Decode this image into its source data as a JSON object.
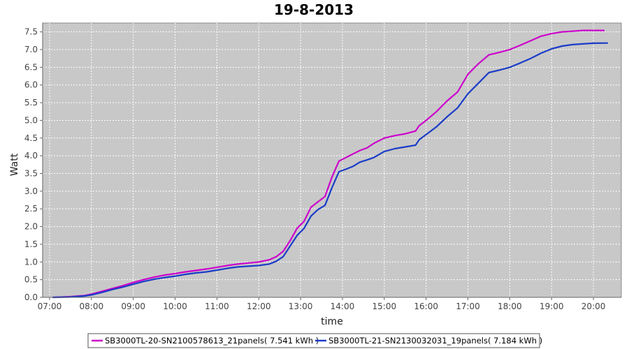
{
  "chart_data": {
    "type": "line",
    "title": "19-8-2013",
    "xlabel": "time",
    "ylabel": "Watt",
    "plot_background": "#c8c8c8",
    "grid": true,
    "legend_position": "bottom",
    "x_ticks": [
      "07:00",
      "08:00",
      "09:00",
      "10:00",
      "11:00",
      "12:00",
      "13:00",
      "14:00",
      "15:00",
      "16:00",
      "17:00",
      "18:00",
      "19:00",
      "20:00"
    ],
    "y_ticks": [
      "0.0",
      "0.5",
      "1.0",
      "1.5",
      "2.0",
      "2.5",
      "3.0",
      "3.5",
      "4.0",
      "4.5",
      "5.0",
      "5.5",
      "6.0",
      "6.5",
      "7.0",
      "7.5"
    ],
    "xlim": [
      "06:50",
      "20:40"
    ],
    "ylim": [
      0,
      7.75
    ],
    "series": [
      {
        "name": "SB3000TL-20-SN2100578613_21panels( 7.541 kWh )",
        "color": "#cc00cc",
        "x": [
          "07:05",
          "07:30",
          "07:50",
          "08:00",
          "08:15",
          "08:30",
          "08:45",
          "09:00",
          "09:15",
          "09:30",
          "09:45",
          "10:00",
          "10:15",
          "10:30",
          "10:45",
          "11:00",
          "11:15",
          "11:30",
          "11:45",
          "12:00",
          "12:15",
          "12:25",
          "12:35",
          "12:45",
          "12:55",
          "13:05",
          "13:15",
          "13:25",
          "13:35",
          "13:45",
          "13:55",
          "14:05",
          "14:15",
          "14:25",
          "14:35",
          "14:45",
          "15:00",
          "15:15",
          "15:30",
          "15:45",
          "15:50",
          "16:00",
          "16:15",
          "16:30",
          "16:45",
          "17:00",
          "17:15",
          "17:30",
          "17:45",
          "18:00",
          "18:15",
          "18:30",
          "18:45",
          "19:00",
          "19:15",
          "19:30",
          "19:45",
          "20:00",
          "20:15"
        ],
        "values": [
          0.0,
          0.02,
          0.05,
          0.09,
          0.17,
          0.25,
          0.33,
          0.42,
          0.5,
          0.57,
          0.63,
          0.67,
          0.72,
          0.76,
          0.8,
          0.85,
          0.9,
          0.94,
          0.97,
          1.0,
          1.06,
          1.15,
          1.3,
          1.6,
          1.95,
          2.15,
          2.55,
          2.7,
          2.85,
          3.4,
          3.85,
          3.95,
          4.05,
          4.15,
          4.22,
          4.35,
          4.5,
          4.57,
          4.62,
          4.7,
          4.85,
          5.0,
          5.25,
          5.55,
          5.8,
          6.3,
          6.6,
          6.85,
          6.92,
          7.0,
          7.12,
          7.25,
          7.38,
          7.45,
          7.5,
          7.52,
          7.54,
          7.54,
          7.541
        ],
        "total": "7.541 kWh"
      },
      {
        "name": "SB3000TL-21-SN2130032031_19panels( 7.184 kWh )",
        "color": "#1a3cc8",
        "x": [
          "07:05",
          "07:30",
          "07:50",
          "08:00",
          "08:15",
          "08:30",
          "08:45",
          "09:00",
          "09:15",
          "09:30",
          "09:45",
          "10:00",
          "10:15",
          "10:30",
          "10:45",
          "11:00",
          "11:15",
          "11:30",
          "11:45",
          "12:00",
          "12:15",
          "12:25",
          "12:35",
          "12:45",
          "12:55",
          "13:05",
          "13:15",
          "13:25",
          "13:35",
          "13:45",
          "13:55",
          "14:05",
          "14:15",
          "14:25",
          "14:35",
          "14:45",
          "15:00",
          "15:15",
          "15:30",
          "15:45",
          "15:50",
          "16:00",
          "16:15",
          "16:30",
          "16:45",
          "17:00",
          "17:15",
          "17:30",
          "17:45",
          "18:00",
          "18:15",
          "18:30",
          "18:45",
          "19:00",
          "19:15",
          "19:30",
          "19:45",
          "20:00",
          "20:20"
        ],
        "values": [
          0.0,
          0.01,
          0.04,
          0.07,
          0.14,
          0.22,
          0.29,
          0.37,
          0.45,
          0.51,
          0.56,
          0.6,
          0.65,
          0.69,
          0.72,
          0.77,
          0.82,
          0.86,
          0.88,
          0.9,
          0.94,
          1.02,
          1.15,
          1.45,
          1.75,
          1.95,
          2.3,
          2.48,
          2.6,
          3.1,
          3.55,
          3.62,
          3.7,
          3.82,
          3.88,
          3.95,
          4.12,
          4.2,
          4.25,
          4.3,
          4.45,
          4.6,
          4.82,
          5.1,
          5.35,
          5.75,
          6.05,
          6.35,
          6.42,
          6.5,
          6.62,
          6.75,
          6.9,
          7.02,
          7.1,
          7.14,
          7.16,
          7.18,
          7.184
        ],
        "total": "7.184 kWh"
      }
    ]
  }
}
